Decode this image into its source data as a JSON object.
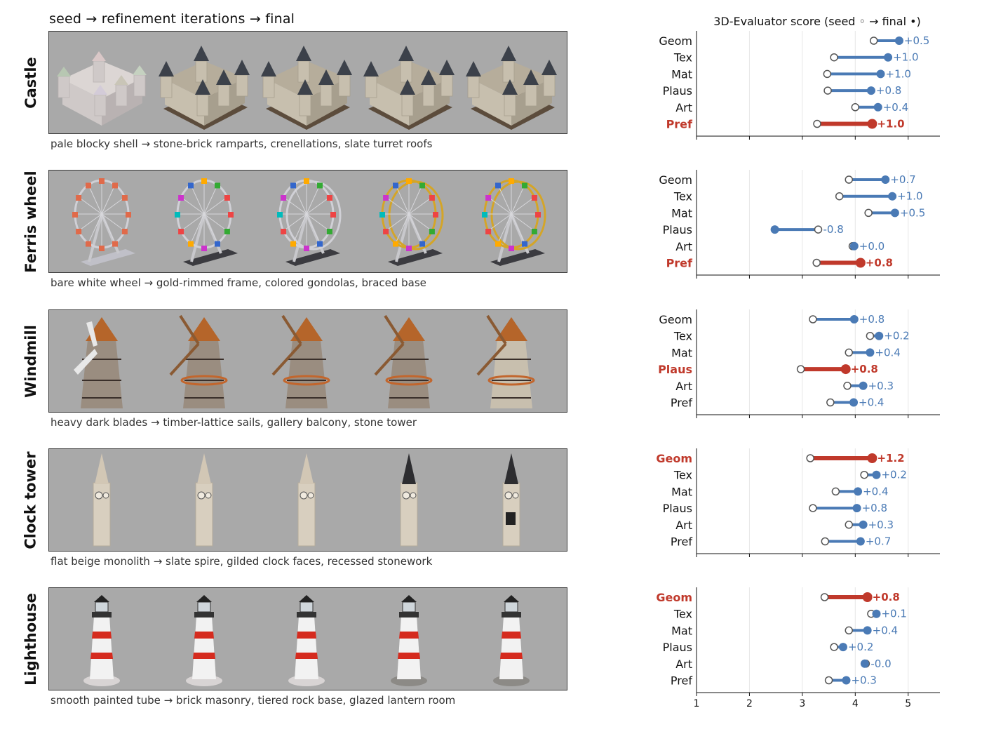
{
  "header": {
    "left_title": "seed  →  refinement iterations  →  final",
    "chart_title": "3D-Evaluator score  (seed ◦ → final •)"
  },
  "colors": {
    "panel_bg": "#a9a9a9",
    "normal": "#4a7ab5",
    "highlight": "#c0392b",
    "gridline": "#e6e6e6"
  },
  "rows": [
    {
      "label": "Castle",
      "caption": "pale blocky shell  →  stone-brick ramparts, crenellations, slate turret roofs",
      "object": "castle"
    },
    {
      "label": "Ferris wheel",
      "caption": "bare white wheel  →  gold-rimmed frame, colored gondolas, braced base",
      "object": "ferris-wheel"
    },
    {
      "label": "Windmill",
      "caption": "heavy dark blades  →  timber-lattice sails, gallery balcony, stone tower",
      "object": "windmill"
    },
    {
      "label": "Clock tower",
      "caption": "flat beige monolith  →  slate spire, gilded clock faces, recessed stonework",
      "object": "clock-tower"
    },
    {
      "label": "Lighthouse",
      "caption": "smooth painted tube  →  brick masonry, tiered rock base, glazed lantern room",
      "object": "lighthouse"
    }
  ],
  "chart_data": {
    "type": "dumbbell",
    "title": "3D-Evaluator score  (seed ◦ → final •)",
    "categories": [
      "Geom",
      "Tex",
      "Mat",
      "Plaus",
      "Art",
      "Pref"
    ],
    "xlim": [
      1,
      5.6
    ],
    "xticks": [
      1,
      2,
      3,
      4,
      5
    ],
    "xtick_labels": [
      "1",
      "2",
      "3",
      "4",
      "5"
    ],
    "grid": "vertical",
    "panels": [
      {
        "name": "Castle",
        "highlight": "Pref",
        "seed": [
          4.35,
          3.6,
          3.47,
          3.48,
          4.0,
          3.28
        ],
        "final": [
          4.83,
          4.62,
          4.48,
          4.3,
          4.43,
          4.32
        ],
        "deltas": [
          "+0.5",
          "+1.0",
          "+1.0",
          "+0.8",
          "+0.4",
          "+1.0"
        ]
      },
      {
        "name": "Ferris wheel",
        "highlight": "Pref",
        "seed": [
          3.88,
          3.7,
          4.25,
          3.3,
          3.95,
          3.27
        ],
        "final": [
          4.57,
          4.7,
          4.75,
          2.48,
          3.98,
          4.1
        ],
        "deltas": [
          "+0.7",
          "+1.0",
          "+0.5",
          "-0.8",
          "+0.0",
          "+0.8"
        ]
      },
      {
        "name": "Windmill",
        "highlight": "Plaus",
        "seed": [
          3.2,
          4.28,
          3.88,
          2.97,
          3.85,
          3.53
        ],
        "final": [
          3.98,
          4.45,
          4.28,
          3.82,
          4.15,
          3.97
        ],
        "deltas": [
          "+0.8",
          "+0.2",
          "+0.4",
          "+0.8",
          "+0.3",
          "+0.4"
        ]
      },
      {
        "name": "Clock tower",
        "highlight": "Geom",
        "seed": [
          3.15,
          4.17,
          3.63,
          3.2,
          3.88,
          3.43
        ],
        "final": [
          4.32,
          4.4,
          4.05,
          4.03,
          4.15,
          4.1
        ],
        "deltas": [
          "+1.2",
          "+0.2",
          "+0.4",
          "+0.8",
          "+0.3",
          "+0.7"
        ]
      },
      {
        "name": "Lighthouse",
        "highlight": "Geom",
        "seed": [
          3.42,
          4.3,
          3.88,
          3.6,
          4.2,
          3.5
        ],
        "final": [
          4.23,
          4.4,
          4.23,
          3.77,
          4.18,
          3.83
        ],
        "deltas": [
          "+0.8",
          "+0.1",
          "+0.4",
          "+0.2",
          "-0.0",
          "+0.3"
        ]
      }
    ]
  }
}
